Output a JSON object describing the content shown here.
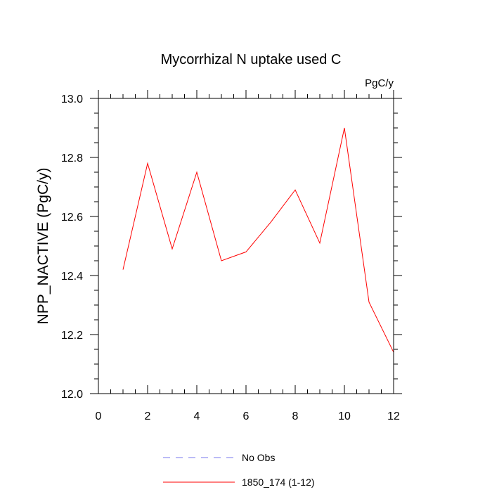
{
  "chart_data": {
    "type": "line",
    "title": "Mycorrhizal N uptake used C",
    "units_label": "PgC/y",
    "ylabel": "NPP_NACTIVE  (PgC/y)",
    "xlabel": "",
    "xlim": [
      0,
      12
    ],
    "ylim": [
      12.0,
      13.0
    ],
    "x_ticks": [
      0,
      2,
      4,
      6,
      8,
      10,
      12
    ],
    "y_ticks": [
      12.0,
      12.2,
      12.4,
      12.6,
      12.8,
      13.0
    ],
    "y_tick_labels": [
      "12.0",
      "12.2",
      "12.4",
      "12.6",
      "12.8",
      "13.0"
    ],
    "grid": false,
    "legend_position": "bottom",
    "series": [
      {
        "name": "No Obs",
        "color": "#7777ee",
        "dash": "dashed",
        "x": [],
        "y": []
      },
      {
        "name": "1850_174 (1-12)",
        "color": "#ff0000",
        "dash": "solid",
        "x": [
          1,
          2,
          3,
          4,
          5,
          6,
          7,
          8,
          9,
          10,
          11,
          12
        ],
        "y": [
          12.42,
          12.78,
          12.49,
          12.75,
          12.45,
          12.48,
          12.58,
          12.69,
          12.51,
          12.9,
          12.31,
          12.14
        ]
      }
    ]
  }
}
